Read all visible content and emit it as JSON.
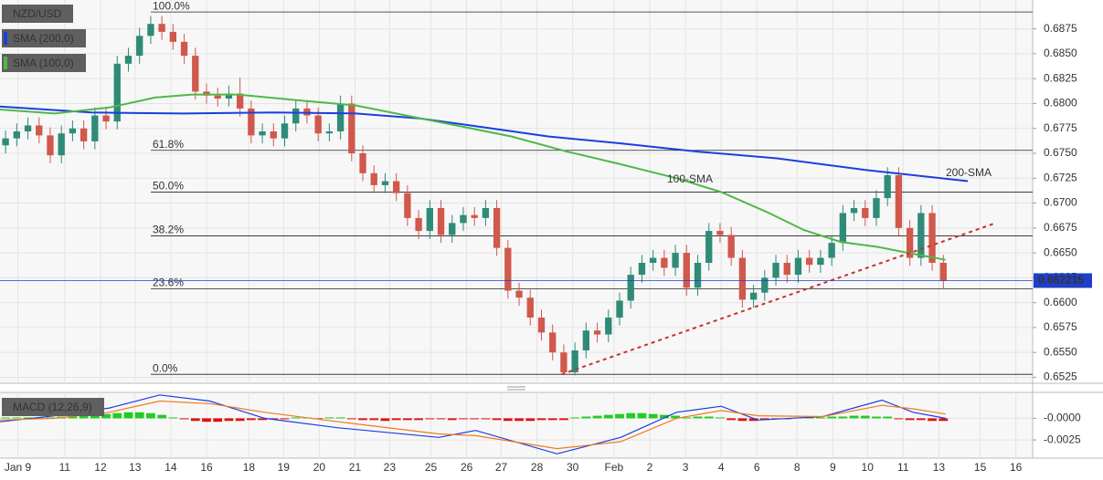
{
  "chart_data": [
    {
      "type": "candlestick",
      "title": "NZD/USD",
      "xlim": [
        -0.5,
        92
      ],
      "ylim": [
        0.6519,
        0.6904
      ],
      "yticks": [
        0.6525,
        {
          "value": 0.655,
          "label": "0.6550"
        },
        0.6575,
        {
          "value": 0.66,
          "label": "0.6600"
        },
        0.6625,
        {
          "value": 0.665,
          "label": "0.6650"
        },
        0.6675,
        {
          "value": 0.67,
          "label": "0.6700"
        },
        0.6725,
        {
          "value": 0.675,
          "label": "0.6750"
        },
        0.6775,
        {
          "value": 0.68,
          "label": "0.6800"
        },
        0.6825,
        {
          "value": 0.685,
          "label": "0.6850"
        },
        0.6875
      ],
      "up_color": "#2e8b78",
      "down_color": "#d0584c",
      "ohlc": {
        "open": [
          0.6758,
          0.6765,
          0.6772,
          0.6778,
          0.6768,
          0.6748,
          0.677,
          0.6775,
          0.6762,
          0.6788,
          0.6782,
          0.684,
          0.6848,
          0.6868,
          0.688,
          0.6872,
          0.6862,
          0.6848,
          0.6812,
          0.6808,
          0.6805,
          0.681,
          0.6795,
          0.6768,
          0.6772,
          0.6765,
          0.678,
          0.6795,
          0.6788,
          0.677,
          0.6772,
          0.68,
          0.675,
          0.673,
          0.6718,
          0.6722,
          0.671,
          0.6685,
          0.6672,
          0.6695,
          0.6668,
          0.668,
          0.6688,
          0.6685,
          0.6695,
          0.6655,
          0.6612,
          0.6605,
          0.6585,
          0.657,
          0.655,
          0.653,
          0.6552,
          0.6572,
          0.6568,
          0.6585,
          0.6602,
          0.6628,
          0.664,
          0.6645,
          0.6635,
          0.665,
          0.6615,
          0.664,
          0.6672,
          0.6668,
          0.6645,
          0.6603,
          0.661,
          0.6625,
          0.664,
          0.6628,
          0.6645,
          0.6638,
          0.6645,
          0.666,
          0.669,
          0.6695,
          0.6685,
          0.6705,
          0.6728,
          0.6675,
          0.6645,
          0.669,
          0.664
        ],
        "high": [
          0.6773,
          0.678,
          0.6786,
          0.6786,
          0.6776,
          0.6778,
          0.6783,
          0.6783,
          0.6796,
          0.6796,
          0.6848,
          0.6856,
          0.6876,
          0.6888,
          0.6888,
          0.688,
          0.687,
          0.6856,
          0.682,
          0.6816,
          0.6818,
          0.6826,
          0.6803,
          0.678,
          0.678,
          0.6788,
          0.6803,
          0.6803,
          0.6796,
          0.678,
          0.6808,
          0.6808,
          0.6758,
          0.6738,
          0.673,
          0.673,
          0.6718,
          0.6693,
          0.6703,
          0.6703,
          0.6688,
          0.6696,
          0.6696,
          0.6703,
          0.6703,
          0.6663,
          0.662,
          0.6613,
          0.6593,
          0.6578,
          0.6558,
          0.656,
          0.658,
          0.658,
          0.6593,
          0.661,
          0.6636,
          0.6648,
          0.6653,
          0.6653,
          0.6658,
          0.6658,
          0.6648,
          0.668,
          0.668,
          0.6676,
          0.6653,
          0.6618,
          0.6633,
          0.6648,
          0.6648,
          0.6653,
          0.6653,
          0.6653,
          0.6668,
          0.6698,
          0.6703,
          0.6703,
          0.6713,
          0.6736,
          0.6736,
          0.6683,
          0.6698,
          0.6698,
          0.6648
        ],
        "low": [
          0.675,
          0.6757,
          0.6764,
          0.676,
          0.674,
          0.674,
          0.6762,
          0.6754,
          0.6754,
          0.6774,
          0.6774,
          0.6832,
          0.684,
          0.686,
          0.6864,
          0.6854,
          0.684,
          0.6804,
          0.68,
          0.6797,
          0.6797,
          0.6787,
          0.676,
          0.676,
          0.6757,
          0.6757,
          0.6772,
          0.678,
          0.6762,
          0.6762,
          0.6764,
          0.6742,
          0.6722,
          0.671,
          0.671,
          0.6702,
          0.6677,
          0.6664,
          0.6664,
          0.666,
          0.666,
          0.6672,
          0.6677,
          0.6677,
          0.6647,
          0.6604,
          0.6597,
          0.6577,
          0.6562,
          0.6542,
          0.6527,
          0.6527,
          0.6544,
          0.656,
          0.656,
          0.6577,
          0.6594,
          0.662,
          0.6632,
          0.6627,
          0.6627,
          0.6607,
          0.6607,
          0.6632,
          0.666,
          0.6637,
          0.6595,
          0.6595,
          0.6602,
          0.6617,
          0.662,
          0.662,
          0.663,
          0.663,
          0.6637,
          0.6652,
          0.6682,
          0.6677,
          0.6677,
          0.6697,
          0.6667,
          0.6637,
          0.6637,
          0.6632,
          0.6614
        ],
        "close": [
          0.6765,
          0.6772,
          0.6778,
          0.6768,
          0.6748,
          0.677,
          0.6775,
          0.6762,
          0.6788,
          0.6782,
          0.684,
          0.6848,
          0.6868,
          0.688,
          0.6872,
          0.6862,
          0.6848,
          0.6812,
          0.6808,
          0.6805,
          0.681,
          0.6795,
          0.6768,
          0.6772,
          0.6765,
          0.678,
          0.6795,
          0.6788,
          0.677,
          0.6772,
          0.68,
          0.675,
          0.673,
          0.6718,
          0.6722,
          0.671,
          0.6685,
          0.6672,
          0.6695,
          0.6668,
          0.668,
          0.6688,
          0.6685,
          0.6695,
          0.6655,
          0.6612,
          0.6605,
          0.6585,
          0.657,
          0.655,
          0.653,
          0.6552,
          0.6572,
          0.6568,
          0.6585,
          0.6602,
          0.6628,
          0.664,
          0.6645,
          0.6635,
          0.665,
          0.6615,
          0.664,
          0.6672,
          0.6668,
          0.6645,
          0.6603,
          0.661,
          0.6625,
          0.664,
          0.6628,
          0.6645,
          0.6638,
          0.6645,
          0.666,
          0.669,
          0.6695,
          0.6685,
          0.6705,
          0.6728,
          0.6675,
          0.6645,
          0.669,
          0.664,
          0.6622
        ]
      },
      "series": [
        {
          "name": "SMA (200,0)",
          "color": "#1b3ee0",
          "x": [
            -0.5,
            7.7,
            15.9,
            24.05,
            31.4,
            37.1,
            42.9,
            48.6,
            55.1,
            61.7,
            69.1,
            77.2,
            86.2
          ],
          "values": [
            0.6797,
            0.6791,
            0.679,
            0.6791,
            0.679,
            0.6785,
            0.6776,
            0.6767,
            0.676,
            0.6752,
            0.6745,
            0.6733,
            0.6722
          ]
        },
        {
          "name": "SMA (100,0)",
          "color": "#4fb848",
          "x": [
            -0.5,
            4.4,
            9.3,
            13.4,
            16.7,
            20.8,
            26.5,
            31.4,
            36.3,
            40.4,
            45.3,
            50.2,
            55.1,
            60.1,
            64.1,
            68.2,
            71.5,
            74.8,
            78.1,
            81.3,
            84.2
          ],
          "values": [
            0.6794,
            0.679,
            0.6796,
            0.6806,
            0.6809,
            0.6809,
            0.6803,
            0.6798,
            0.6787,
            0.6778,
            0.6767,
            0.6752,
            0.6739,
            0.6725,
            0.6711,
            0.6691,
            0.6673,
            0.6661,
            0.6656,
            0.6649,
            0.6643
          ]
        }
      ],
      "trendline": {
        "x": [
          49.8,
          88.7
        ],
        "values": [
          0.6528,
          0.668
        ],
        "color": "#c8302b"
      },
      "fib_levels": [
        {
          "ratio_label": "100.0%",
          "price": 0.6892
        },
        {
          "ratio_label": "61.8%",
          "price": 0.6753
        },
        {
          "ratio_label": "50.0%",
          "price": 0.6711
        },
        {
          "ratio_label": "38.2%",
          "price": 0.6667
        },
        {
          "ratio_label": "23.6%",
          "price": 0.6614
        },
        {
          "ratio_label": "0.0%",
          "price": 0.6528
        }
      ],
      "last_price": 0.662215,
      "last_price_color": "#1f3fc8",
      "annotations": [
        {
          "text": "100-SMA",
          "color": "#4fb848"
        },
        {
          "text": "200-SMA",
          "color": "#7a4fc8"
        }
      ]
    },
    {
      "type": "macd",
      "title": "MACD (12,26,9)",
      "xlim": [
        -0.5,
        92
      ],
      "ylim": [
        -0.0046,
        0.003
      ],
      "yticks": [
        {
          "value": 0,
          "label": "-0.0000"
        },
        -0.0025
      ],
      "xticks": [
        {
          "value": 1.1,
          "label": "Jan 9"
        },
        {
          "value": 5.3,
          "label": "11"
        },
        {
          "value": 8.5,
          "label": "12"
        },
        {
          "value": 11.6,
          "label": "13"
        },
        {
          "value": 14.8,
          "label": "14"
        },
        {
          "value": 18.0,
          "label": "16"
        },
        {
          "value": 21.8,
          "label": "18"
        },
        {
          "value": 24.9,
          "label": "19"
        },
        {
          "value": 28.1,
          "label": "20"
        },
        {
          "value": 31.3,
          "label": "21"
        },
        {
          "value": 34.4,
          "label": "23"
        },
        {
          "value": 38.1,
          "label": "25"
        },
        {
          "value": 41.3,
          "label": "26"
        },
        {
          "value": 44.4,
          "label": "27"
        },
        {
          "value": 47.6,
          "label": "28"
        },
        {
          "value": 50.8,
          "label": "30"
        },
        {
          "value": 54.5,
          "label": "Feb"
        },
        {
          "value": 57.7,
          "label": "2"
        },
        {
          "value": 60.9,
          "label": "3"
        },
        {
          "value": 64.1,
          "label": "4"
        },
        {
          "value": 67.3,
          "label": "6"
        },
        {
          "value": 70.9,
          "label": "8"
        },
        {
          "value": 74.1,
          "label": "9"
        },
        {
          "value": 77.2,
          "label": "10"
        },
        {
          "value": 80.4,
          "label": "11"
        },
        {
          "value": 83.6,
          "label": "13"
        },
        {
          "value": 87.3,
          "label": "15"
        },
        {
          "value": 90.5,
          "label": "16"
        }
      ],
      "histogram": [
        0.0001,
        0.0001,
        0.0001,
        0.0001,
        0.0001,
        0.0002,
        0.0002,
        0.0003,
        0.0004,
        0.0005,
        0.0006,
        0.0007,
        0.0007,
        0.0006,
        0.0004,
        0.0001,
        -0.0001,
        -0.0003,
        -0.0004,
        -0.0004,
        -0.0003,
        -0.0003,
        -0.0002,
        -0.0002,
        -0.0001,
        -0.0001,
        0.0001,
        0.0001,
        -0.0001,
        0.0001,
        0.0001,
        -0.0001,
        -0.0002,
        -0.0002,
        -0.0003,
        -0.0002,
        -0.0002,
        -0.0002,
        -0.0001,
        -0.0001,
        -0.0002,
        -0.0001,
        -0.0001,
        -0.0001,
        -0.0002,
        -0.0003,
        -0.0003,
        -0.0003,
        -0.0002,
        -0.0002,
        -0.0002,
        0.0001,
        0.0002,
        0.0003,
        0.0004,
        0.0005,
        0.0006,
        0.0006,
        0.0005,
        0.0004,
        0.0003,
        0.0001,
        0.0002,
        0.0002,
        0.0001,
        -0.0002,
        -0.0003,
        -0.0003,
        -0.0002,
        -0.0001,
        -0.0001,
        0.0001,
        0.0001,
        0.0001,
        0.0002,
        0.0002,
        0.0003,
        0.0003,
        0.0002,
        0.0002,
        -0.0001,
        -0.0002,
        -0.0002,
        -0.0003,
        -0.0003
      ],
      "hist_colors": {
        "positive": "#22cc22",
        "negative": "#e01010"
      },
      "series": [
        {
          "color": "#1b3ee0",
          "x": [
            -0.5,
            4.4,
            9.3,
            13.8,
            18.3,
            23.2,
            29.8,
            38.8,
            42.1,
            49.4,
            55.1,
            60.1,
            64.1,
            67.4,
            73.2,
            78.5,
            81.3,
            84.2
          ],
          "values": [
            -0.0004,
            0.0003,
            0.0012,
            0.0027,
            0.002,
            0,
            -0.0011,
            -0.0022,
            -0.0014,
            -0.0041,
            -0.0022,
            0.0007,
            0.0014,
            -0.0002,
            0.0002,
            0.0021,
            0.0007,
            0
          ]
        },
        {
          "color": "#f07a1a",
          "x": [
            -0.5,
            4.4,
            9.3,
            13.8,
            18.3,
            23.2,
            29.8,
            38.8,
            42.1,
            49.4,
            55.1,
            60.1,
            64.1,
            67.4,
            73.2,
            78.5,
            81.3,
            84.2
          ],
          "values": [
            -0.0002,
            0,
            0.0007,
            0.002,
            0.0017,
            0.0007,
            -0.0004,
            -0.0018,
            -0.002,
            -0.0035,
            -0.0027,
            0,
            0.0009,
            0.0003,
            0.0002,
            0.0015,
            0.0011,
            0.0005
          ]
        }
      ]
    }
  ]
}
